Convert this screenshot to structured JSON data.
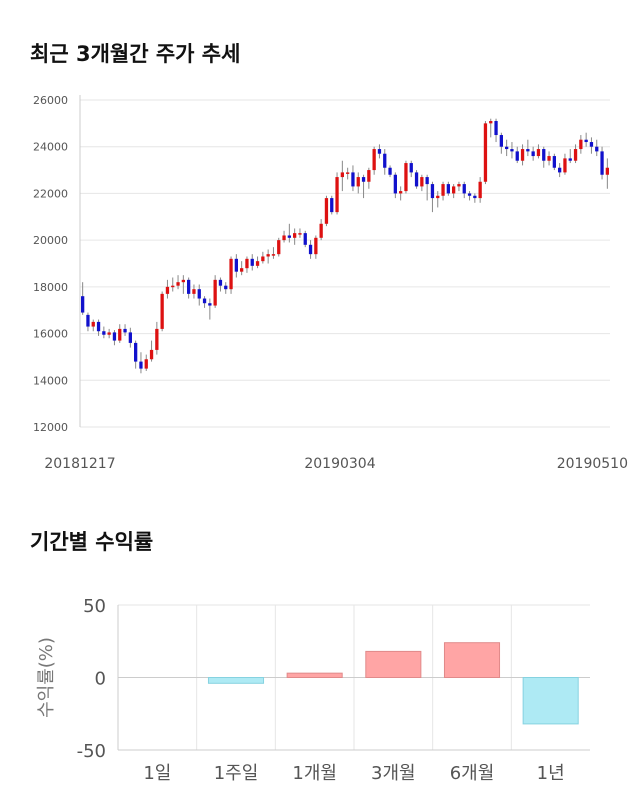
{
  "headings": {
    "price_trend": "최근 3개월간 주가 추세",
    "period_returns": "기간별 수익률"
  },
  "chart_data": [
    {
      "type": "candlestick",
      "title": "최근 3개월간 주가 추세",
      "ylim": [
        12000,
        26000
      ],
      "yticks": [
        12000,
        14000,
        16000,
        18000,
        20000,
        22000,
        24000,
        26000
      ],
      "xtick_labels": [
        "20181217",
        "20190304",
        "20190510"
      ],
      "grid": true,
      "colors": {
        "up": "#dd1111",
        "down": "#1111cc",
        "wick": "#888888"
      },
      "candles": [
        [
          17600,
          16900,
          18200,
          16800
        ],
        [
          16800,
          16300,
          16900,
          16100
        ],
        [
          16300,
          16500,
          16600,
          16100
        ],
        [
          16500,
          16100,
          16600,
          15900
        ],
        [
          16100,
          15950,
          16300,
          15800
        ],
        [
          15950,
          16050,
          16200,
          15800
        ],
        [
          16050,
          15700,
          16150,
          15500
        ],
        [
          15700,
          16200,
          16400,
          15600
        ],
        [
          16200,
          16050,
          16400,
          15900
        ],
        [
          16050,
          15600,
          16250,
          15400
        ],
        [
          15600,
          14800,
          15700,
          14500
        ],
        [
          14800,
          14500,
          15200,
          14300
        ],
        [
          14500,
          14900,
          15100,
          14400
        ],
        [
          14900,
          15300,
          15700,
          14800
        ],
        [
          15300,
          16200,
          16500,
          15100
        ],
        [
          16200,
          17700,
          17800,
          16100
        ],
        [
          17700,
          18000,
          18300,
          17500
        ],
        [
          18000,
          18050,
          18400,
          17800
        ],
        [
          18050,
          18200,
          18500,
          17900
        ],
        [
          18200,
          18300,
          18500,
          17700
        ],
        [
          18300,
          17700,
          18400,
          17500
        ],
        [
          17700,
          17900,
          18100,
          17500
        ],
        [
          17900,
          17500,
          18100,
          17200
        ],
        [
          17500,
          17300,
          17600,
          17100
        ],
        [
          17300,
          17200,
          17500,
          16600
        ],
        [
          17200,
          18300,
          18500,
          17100
        ],
        [
          18300,
          18050,
          18400,
          17800
        ],
        [
          18050,
          17900,
          18200,
          17700
        ],
        [
          17900,
          19200,
          19300,
          17700
        ],
        [
          19200,
          18650,
          19400,
          18400
        ],
        [
          18650,
          18800,
          19100,
          18500
        ],
        [
          18800,
          19200,
          19300,
          18600
        ],
        [
          19200,
          18900,
          19400,
          18700
        ],
        [
          18900,
          19100,
          19300,
          18800
        ],
        [
          19100,
          19300,
          19500,
          19000
        ],
        [
          19300,
          19400,
          19600,
          19000
        ],
        [
          19400,
          19400,
          19700,
          19200
        ],
        [
          19400,
          20000,
          20100,
          19300
        ],
        [
          20000,
          20200,
          20400,
          19900
        ],
        [
          20200,
          20100,
          20700,
          19900
        ],
        [
          20100,
          20300,
          20500,
          19800
        ],
        [
          20300,
          20300,
          20500,
          20100
        ],
        [
          20300,
          19800,
          20400,
          19700
        ],
        [
          19800,
          19400,
          20000,
          19200
        ],
        [
          19400,
          20100,
          20200,
          19200
        ],
        [
          20100,
          20700,
          20900,
          20000
        ],
        [
          20700,
          21800,
          21900,
          20600
        ],
        [
          21800,
          21200,
          21900,
          21100
        ],
        [
          21200,
          22700,
          22900,
          21100
        ],
        [
          22700,
          22900,
          23400,
          22100
        ],
        [
          22900,
          22900,
          23100,
          22600
        ],
        [
          22900,
          22300,
          23200,
          22100
        ],
        [
          22300,
          22700,
          22900,
          22000
        ],
        [
          22700,
          22500,
          22800,
          21800
        ],
        [
          22500,
          23000,
          23100,
          22200
        ],
        [
          23000,
          23900,
          24000,
          22800
        ],
        [
          23900,
          23700,
          24100,
          23500
        ],
        [
          23700,
          23100,
          23900,
          22800
        ],
        [
          23100,
          22800,
          23200,
          22700
        ],
        [
          22800,
          22000,
          22900,
          21800
        ],
        [
          22000,
          22100,
          22300,
          21700
        ],
        [
          22100,
          23300,
          23400,
          22000
        ],
        [
          23300,
          22900,
          23400,
          22700
        ],
        [
          22900,
          22300,
          23000,
          22200
        ],
        [
          22300,
          22700,
          22800,
          22100
        ],
        [
          22700,
          22400,
          22800,
          21700
        ],
        [
          22400,
          21800,
          22500,
          21200
        ],
        [
          21800,
          21900,
          22100,
          21400
        ],
        [
          21900,
          22400,
          22500,
          21700
        ],
        [
          22400,
          22000,
          22500,
          21900
        ],
        [
          22000,
          22300,
          22400,
          21800
        ],
        [
          22300,
          22400,
          22500,
          22100
        ],
        [
          22400,
          22000,
          22500,
          21800
        ],
        [
          22000,
          21900,
          22100,
          21700
        ],
        [
          21900,
          21800,
          22000,
          21600
        ],
        [
          21800,
          22500,
          22700,
          21600
        ],
        [
          22500,
          25000,
          25100,
          22400
        ],
        [
          25000,
          25100,
          25200,
          24400
        ],
        [
          25100,
          24500,
          25200,
          24200
        ],
        [
          24500,
          24000,
          24600,
          23700
        ],
        [
          24000,
          23900,
          24300,
          23600
        ],
        [
          23900,
          23800,
          24200,
          23500
        ],
        [
          23800,
          23400,
          24000,
          23300
        ],
        [
          23400,
          23900,
          24100,
          23200
        ],
        [
          23900,
          23800,
          24300,
          23600
        ],
        [
          23800,
          23600,
          24000,
          23400
        ],
        [
          23600,
          23900,
          24100,
          23500
        ],
        [
          23900,
          23400,
          24000,
          23100
        ],
        [
          23400,
          23600,
          23800,
          23200
        ],
        [
          23600,
          23100,
          23700,
          23000
        ],
        [
          23100,
          22900,
          23300,
          22700
        ],
        [
          22900,
          23500,
          23700,
          22800
        ],
        [
          23500,
          23400,
          23900,
          23300
        ],
        [
          23400,
          23900,
          24100,
          23300
        ],
        [
          23900,
          24300,
          24500,
          23700
        ],
        [
          24300,
          24200,
          24600,
          24000
        ],
        [
          24200,
          24000,
          24400,
          23700
        ],
        [
          24000,
          23800,
          24300,
          23600
        ],
        [
          23800,
          22800,
          24000,
          22600
        ],
        [
          22800,
          23100,
          23500,
          22200
        ]
      ]
    },
    {
      "type": "bar",
      "title": "기간별 수익률",
      "ylabel": "수익률(%)",
      "ylim": [
        -50,
        50
      ],
      "yticks": [
        50,
        0,
        -50
      ],
      "categories": [
        "1일",
        "1주일",
        "1개월",
        "3개월",
        "6개월",
        "1년"
      ],
      "values": [
        0,
        -4,
        3,
        18,
        24,
        -32
      ],
      "grid": true,
      "colors": {
        "positive": "#ffa5a5",
        "positive_edge": "#e08a8a",
        "negative": "#aeeaf4",
        "negative_edge": "#86d2e0"
      }
    }
  ]
}
